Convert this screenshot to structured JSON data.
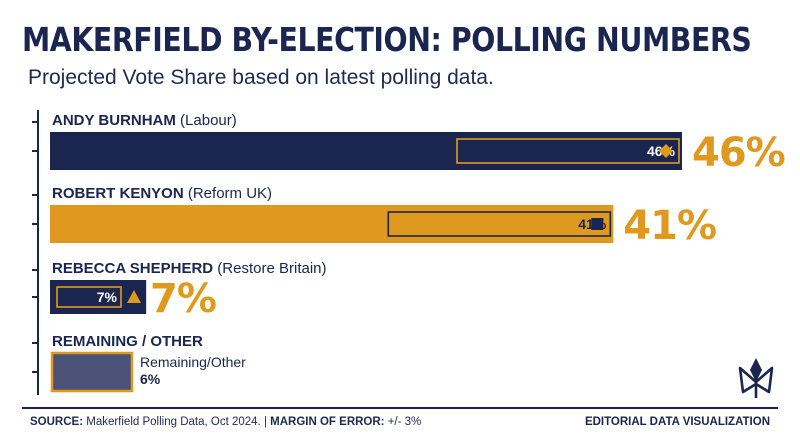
{
  "header": {
    "title": "MAKERFIELD BY-ELECTION: POLLING NUMBERS",
    "subtitle": "Projected Vote Share based on latest polling data."
  },
  "footer": {
    "source_label": "SOURCE:",
    "source_text": "Makerfield Polling Data, Oct 2024.",
    "separator": "|",
    "margin_label": "MARGIN OF ERROR:",
    "margin_text": "+/- 3%",
    "credit": "EDITORIAL DATA VISUALIZATION"
  },
  "colors": {
    "navy": "#1a2550",
    "orange": "#e0991f",
    "slate": "#4a5278",
    "white": "#ffffff"
  },
  "chart_data": {
    "type": "bar",
    "orientation": "horizontal",
    "title": "MAKERFIELD BY-ELECTION: POLLING NUMBERS",
    "subtitle": "Projected Vote Share based on latest polling data.",
    "unit": "%",
    "xlim": [
      0,
      50
    ],
    "grid": false,
    "legend": "none",
    "categories": [
      "ANDY BURNHAM",
      "ROBERT KENYON",
      "REBECCA SHEPHERD",
      "REMAINING / OTHER"
    ],
    "series": [
      {
        "values": [
          46,
          41,
          7,
          6
        ]
      }
    ],
    "bars": [
      {
        "name": "ANDY BURNHAM",
        "party": "(Labour)",
        "value": 46,
        "inner_label": "46%",
        "outer_label": "46%",
        "marker": "diamond",
        "color": "#1a2550"
      },
      {
        "name": "ROBERT KENYON",
        "party": "(Reform UK)",
        "value": 41,
        "inner_label": "41%",
        "outer_label": "41%",
        "marker": "square",
        "color": "#e0991f"
      },
      {
        "name": "REBECCA SHEPHERD",
        "party": "(Restore Britain)",
        "value": 7,
        "inner_label": "7%",
        "outer_label": "7%",
        "marker": "triangle",
        "color": "#1a2550"
      },
      {
        "name": "REMAINING / OTHER",
        "party": "",
        "value": 6,
        "side_label": "Remaining/Other",
        "side_value": "6%",
        "marker": "none",
        "color": "#4a5278"
      }
    ]
  }
}
